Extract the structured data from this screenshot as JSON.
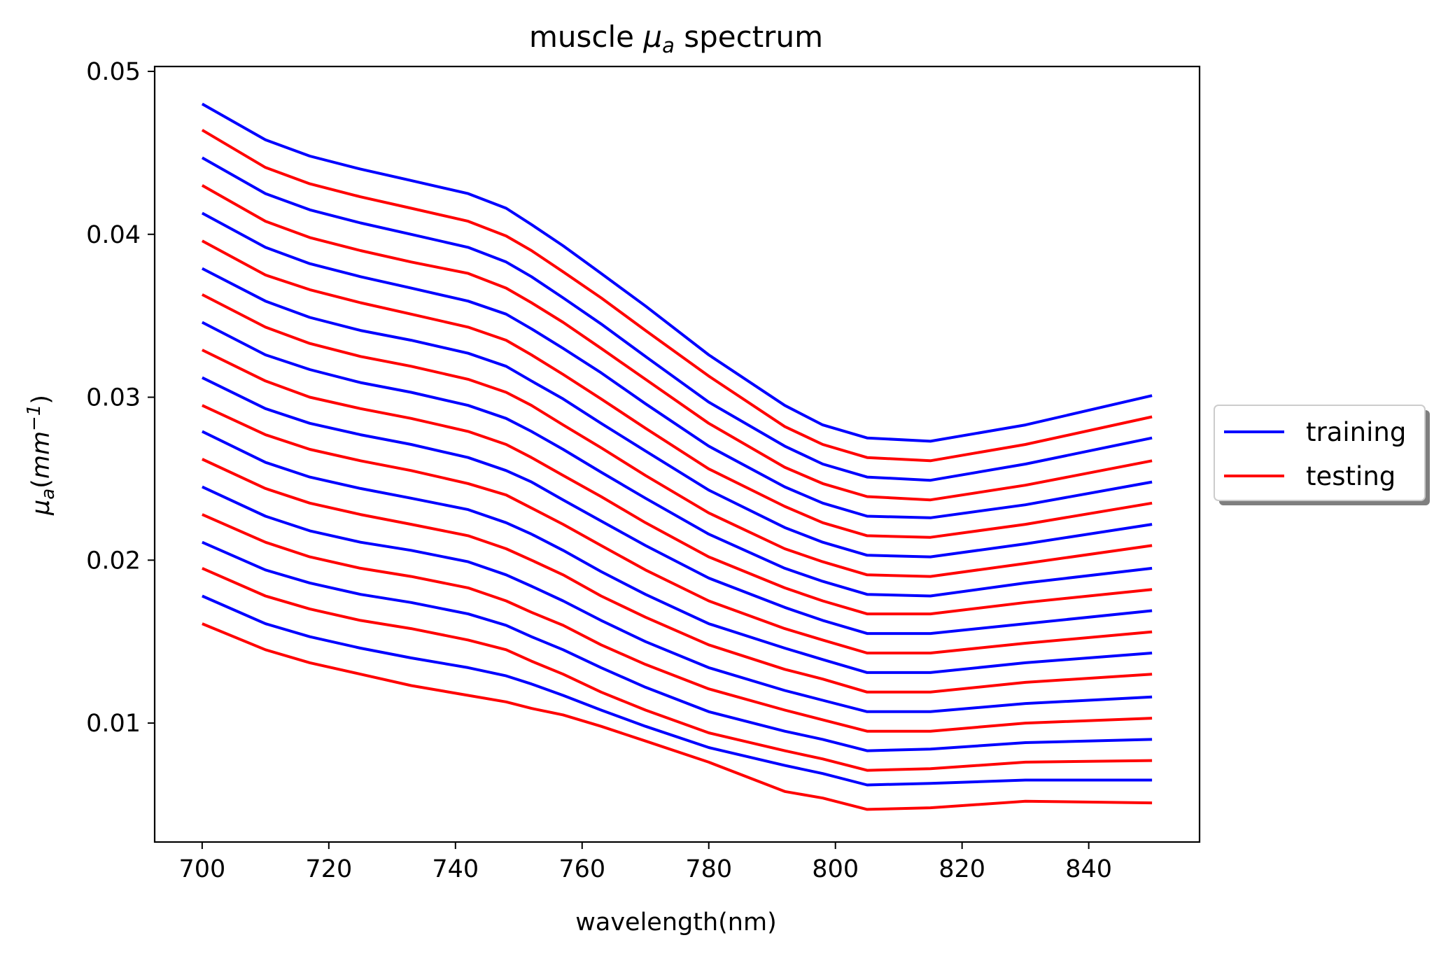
{
  "chart_data": {
    "type": "line",
    "title": {
      "prefix": "muscle ",
      "symbol": "μ",
      "subscript": "a",
      "suffix": " spectrum"
    },
    "xlabel": "wavelength(nm)",
    "ylabel": {
      "symbol": "μ",
      "subscript": "a",
      "open": "(",
      "unit": "mm",
      "superscript": "−1",
      "close": ")"
    },
    "xlim": [
      692.5,
      857.5
    ],
    "ylim": [
      0.0027,
      0.0503
    ],
    "xticks": [
      700,
      720,
      740,
      760,
      780,
      800,
      820,
      840
    ],
    "yticks": [
      0.01,
      0.02,
      0.03,
      0.04,
      0.05
    ],
    "ytick_labels": [
      "0.01",
      "0.02",
      "0.03",
      "0.04",
      "0.05"
    ],
    "grid": false,
    "legend": {
      "placement": "outside-right",
      "entries": [
        {
          "label": "training",
          "color": "#0000ff"
        },
        {
          "label": "testing",
          "color": "#ff0000"
        }
      ]
    },
    "colors": {
      "training": "#0000ff",
      "testing": "#ff0000"
    },
    "x": [
      700,
      710,
      717,
      725,
      733,
      742,
      748,
      752,
      757,
      763,
      770,
      780,
      792,
      798,
      805,
      815,
      830,
      850
    ],
    "series": [
      {
        "group": "training",
        "values": [
          0.048,
          0.0458,
          0.0448,
          0.044,
          0.0433,
          0.0425,
          0.0416,
          0.0406,
          0.0393,
          0.0376,
          0.0356,
          0.0326,
          0.0295,
          0.0283,
          0.0275,
          0.0273,
          0.0283,
          0.0301
        ]
      },
      {
        "group": "testing",
        "values": [
          0.0464,
          0.0441,
          0.0431,
          0.0423,
          0.0416,
          0.0408,
          0.0399,
          0.039,
          0.0377,
          0.0361,
          0.0341,
          0.0313,
          0.0282,
          0.0271,
          0.0263,
          0.0261,
          0.0271,
          0.0288
        ]
      },
      {
        "group": "training",
        "values": [
          0.0447,
          0.0425,
          0.0415,
          0.0407,
          0.04,
          0.0392,
          0.0383,
          0.0374,
          0.0361,
          0.0345,
          0.0325,
          0.0297,
          0.027,
          0.0259,
          0.0251,
          0.0249,
          0.0259,
          0.0275
        ]
      },
      {
        "group": "testing",
        "values": [
          0.043,
          0.0408,
          0.0398,
          0.039,
          0.0383,
          0.0376,
          0.0367,
          0.0358,
          0.0346,
          0.033,
          0.0311,
          0.0284,
          0.0257,
          0.0247,
          0.0239,
          0.0237,
          0.0246,
          0.0261
        ]
      },
      {
        "group": "training",
        "values": [
          0.0413,
          0.0392,
          0.0382,
          0.0374,
          0.0367,
          0.0359,
          0.0351,
          0.0342,
          0.033,
          0.0315,
          0.0296,
          0.027,
          0.0245,
          0.0235,
          0.0227,
          0.0226,
          0.0234,
          0.0248
        ]
      },
      {
        "group": "testing",
        "values": [
          0.0396,
          0.0375,
          0.0366,
          0.0358,
          0.0351,
          0.0343,
          0.0335,
          0.0326,
          0.0314,
          0.0299,
          0.0281,
          0.0256,
          0.0233,
          0.0223,
          0.0215,
          0.0214,
          0.0222,
          0.0235
        ]
      },
      {
        "group": "training",
        "values": [
          0.0379,
          0.0359,
          0.0349,
          0.0341,
          0.0335,
          0.0327,
          0.0319,
          0.031,
          0.0299,
          0.0284,
          0.0267,
          0.0243,
          0.022,
          0.0211,
          0.0203,
          0.0202,
          0.021,
          0.0222
        ]
      },
      {
        "group": "testing",
        "values": [
          0.0363,
          0.0343,
          0.0333,
          0.0325,
          0.0319,
          0.0311,
          0.0303,
          0.0295,
          0.0283,
          0.0269,
          0.0252,
          0.0229,
          0.0207,
          0.0199,
          0.0191,
          0.019,
          0.0198,
          0.0209
        ]
      },
      {
        "group": "training",
        "values": [
          0.0346,
          0.0326,
          0.0317,
          0.0309,
          0.0303,
          0.0295,
          0.0287,
          0.0279,
          0.0268,
          0.0254,
          0.0238,
          0.0216,
          0.0195,
          0.0187,
          0.0179,
          0.0178,
          0.0186,
          0.0195
        ]
      },
      {
        "group": "testing",
        "values": [
          0.0329,
          0.031,
          0.03,
          0.0293,
          0.0287,
          0.0279,
          0.0271,
          0.0263,
          0.0252,
          0.0239,
          0.0223,
          0.0202,
          0.0183,
          0.0175,
          0.0167,
          0.0167,
          0.0174,
          0.0182
        ]
      },
      {
        "group": "training",
        "values": [
          0.0312,
          0.0293,
          0.0284,
          0.0277,
          0.0271,
          0.0263,
          0.0255,
          0.0248,
          0.0237,
          0.0224,
          0.0209,
          0.0189,
          0.0171,
          0.0163,
          0.0155,
          0.0155,
          0.0161,
          0.0169
        ]
      },
      {
        "group": "testing",
        "values": [
          0.0295,
          0.0277,
          0.0268,
          0.0261,
          0.0255,
          0.0247,
          0.024,
          0.0232,
          0.0222,
          0.0209,
          0.0194,
          0.0175,
          0.0158,
          0.0151,
          0.0143,
          0.0143,
          0.0149,
          0.0156
        ]
      },
      {
        "group": "training",
        "values": [
          0.0279,
          0.026,
          0.0251,
          0.0244,
          0.0238,
          0.0231,
          0.0223,
          0.0216,
          0.0206,
          0.0193,
          0.0179,
          0.0161,
          0.0146,
          0.0139,
          0.0131,
          0.0131,
          0.0137,
          0.0143
        ]
      },
      {
        "group": "testing",
        "values": [
          0.0262,
          0.0244,
          0.0235,
          0.0228,
          0.0222,
          0.0215,
          0.0207,
          0.02,
          0.0191,
          0.0178,
          0.0165,
          0.0148,
          0.0133,
          0.0127,
          0.0119,
          0.0119,
          0.0125,
          0.013
        ]
      },
      {
        "group": "training",
        "values": [
          0.0245,
          0.0227,
          0.0218,
          0.0211,
          0.0206,
          0.0199,
          0.0191,
          0.0184,
          0.0175,
          0.0163,
          0.015,
          0.0134,
          0.012,
          0.0114,
          0.0107,
          0.0107,
          0.0112,
          0.0116
        ]
      },
      {
        "group": "testing",
        "values": [
          0.0228,
          0.0211,
          0.0202,
          0.0195,
          0.019,
          0.0183,
          0.0175,
          0.0168,
          0.016,
          0.0148,
          0.0136,
          0.0121,
          0.0108,
          0.0102,
          0.0095,
          0.0095,
          0.01,
          0.0103
        ]
      },
      {
        "group": "training",
        "values": [
          0.0211,
          0.0194,
          0.0186,
          0.0179,
          0.0174,
          0.0167,
          0.016,
          0.0153,
          0.0145,
          0.0134,
          0.0122,
          0.0107,
          0.0095,
          0.009,
          0.0083,
          0.0084,
          0.0088,
          0.009
        ]
      },
      {
        "group": "testing",
        "values": [
          0.0195,
          0.0178,
          0.017,
          0.0163,
          0.0158,
          0.0151,
          0.0145,
          0.0138,
          0.013,
          0.0119,
          0.0108,
          0.0094,
          0.0083,
          0.0078,
          0.0071,
          0.0072,
          0.0076,
          0.0077
        ]
      },
      {
        "group": "training",
        "values": [
          0.0178,
          0.0161,
          0.0153,
          0.0146,
          0.014,
          0.0134,
          0.0129,
          0.0124,
          0.0117,
          0.0108,
          0.0098,
          0.0085,
          0.0074,
          0.0069,
          0.0062,
          0.0063,
          0.0065,
          0.0065
        ]
      },
      {
        "group": "testing",
        "values": [
          0.0161,
          0.0145,
          0.0137,
          0.013,
          0.0123,
          0.0117,
          0.0113,
          0.0109,
          0.0105,
          0.0098,
          0.0089,
          0.0076,
          0.0058,
          0.0054,
          0.0047,
          0.0048,
          0.0052,
          0.0051
        ]
      }
    ]
  }
}
